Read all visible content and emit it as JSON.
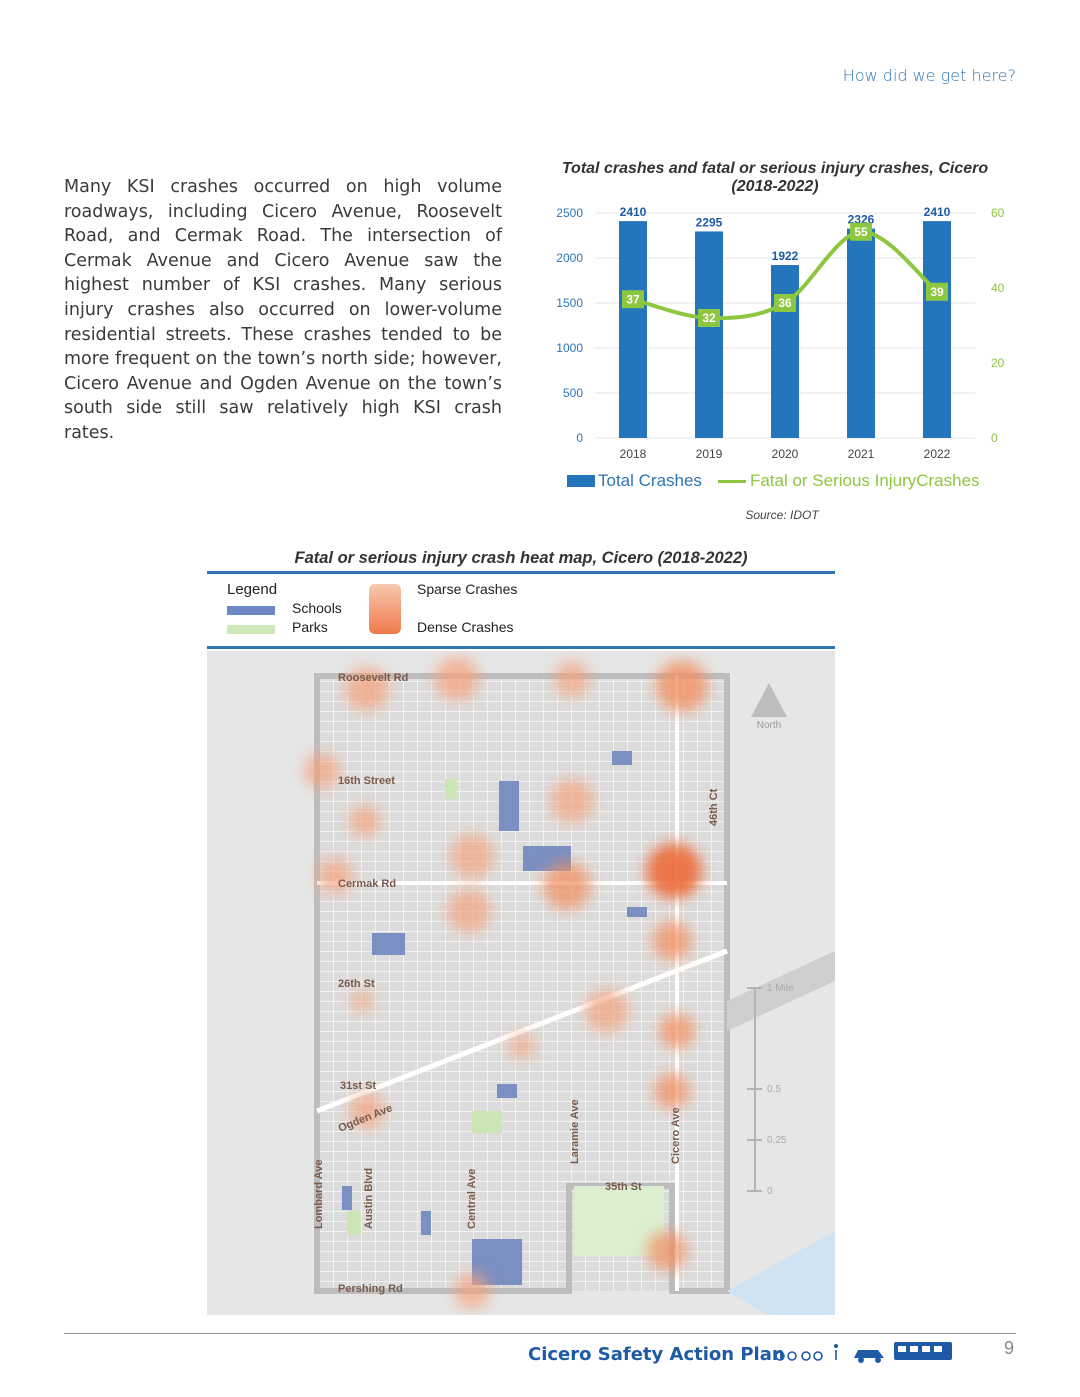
{
  "header": {
    "section_link": "How did we get here?"
  },
  "body_text": "Many KSI crashes occurred on high volume roadways, including Cicero Avenue, Roosevelt Road, and Cermak Road. The intersection of Cermak Avenue and Cicero Avenue saw the highest number of KSI crashes. Many serious injury crashes also occurred on lower-volume residential streets. These crashes tended to be more frequent on the town’s north side; however, Cicero Avenue and Ogden Avenue on the town’s south side still saw relatively high KSI crash rates.",
  "chart_data": {
    "type": "bar",
    "title": "Total crashes and fatal or serious injury crashes, Cicero (2018-2022)",
    "categories": [
      "2018",
      "2019",
      "2020",
      "2021",
      "2022"
    ],
    "series": [
      {
        "name": "Total Crashes",
        "type": "bar",
        "axis": "left",
        "values": [
          2410,
          2295,
          1922,
          2326,
          2410
        ]
      },
      {
        "name": "Fatal or Serious InjuryCrashes",
        "type": "line",
        "axis": "right",
        "values": [
          37,
          32,
          36,
          55,
          39
        ]
      }
    ],
    "ylim": [
      0,
      2500
    ],
    "y_ticks": [
      "0",
      "500",
      "1000",
      "1500",
      "2000",
      "2500"
    ],
    "y2lim": [
      0,
      60
    ],
    "y2_ticks": [
      "0",
      "20",
      "40",
      "60"
    ],
    "colors": {
      "bar": "#2475bb",
      "line": "#8dc63f"
    },
    "source": "Source: IDOT"
  },
  "map": {
    "title": "Fatal or serious injury crash heat map, Cicero (2018-2022)",
    "legend": {
      "heading": "Legend",
      "schools": "Schools",
      "parks": "Parks",
      "sparse": "Sparse Crashes",
      "dense": "Dense Crashes"
    },
    "street_labels": {
      "roosevelt": "Roosevelt Rd",
      "sixteenth": "16th Street",
      "cermak": "Cermak Rd",
      "twentysixth": "26th St",
      "thirtyfirst": "31st St",
      "ogden": "Ogden Ave",
      "lombard": "Lombard Ave",
      "austin": "Austin Blvd",
      "central": "Central Ave",
      "laramie": "Laramie Ave",
      "cicero": "Cicero Ave",
      "thirtyfifth": "35th St",
      "fortysixth": "46th Ct",
      "pershing": "Pershing Rd"
    },
    "north": "North",
    "scale": [
      "1 Mile",
      "0.5",
      "0.25",
      "0"
    ]
  },
  "footer": {
    "title": "Cicero Safety Action Plan",
    "page": "9"
  }
}
